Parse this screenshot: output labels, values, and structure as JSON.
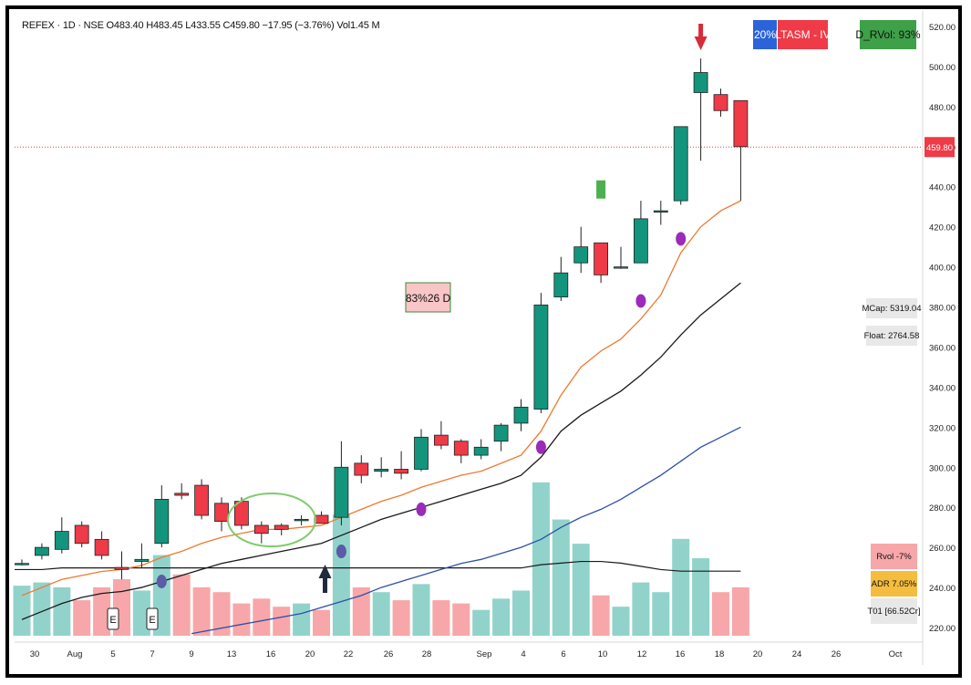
{
  "header": {
    "text": "REFEX · 1D · NSE  O483.40  H483.45  L433.55  C459.80  −17.95 (−3.76%)  Vol1.45 M"
  },
  "badges": {
    "rs": "20%",
    "ltasm": "LTASM - IV",
    "drvol": "D_RVol: 93%"
  },
  "side_info": {
    "mcap": "MCap: 5319.04",
    "float": "Float: 2764.58",
    "rvol": "Rvol -7%",
    "adr": "ADR 7.05%",
    "to": "T01 [66.52Cr]"
  },
  "colors": {
    "up": "#13957d",
    "down": "#ef3a47",
    "volume_up": "#91d3cb",
    "volume_down": "#f7a7a9",
    "ema_fast": "#ee7a2f",
    "ema_mid": "#1a1a1a",
    "ema_slow": "#2c4fa8",
    "rs_badge": "#2b63d9",
    "ltasm_badge": "#ef3a47",
    "drvol_badge": "#3ea048"
  },
  "chart_data": {
    "type": "candlestick",
    "ylim": [
      212,
      525
    ],
    "y_ticks": [
      "520.00",
      "500.00",
      "480.00",
      "460.00",
      "440.00",
      "420.00",
      "400.00",
      "380.00",
      "360.00",
      "340.00",
      "320.00",
      "300.00",
      "280.00",
      "260.00",
      "240.00",
      "220.00"
    ],
    "x_ticks": [
      "30",
      "Aug",
      "5",
      "7",
      "9",
      "13",
      "16",
      "20",
      "22",
      "26",
      "28",
      "Sep",
      "4",
      "6",
      "10",
      "12",
      "16",
      "18",
      "20",
      "24",
      "26",
      "Oct"
    ],
    "last_price": "459.80",
    "annotation": "83%26 D",
    "earnings_markers": [
      "E",
      "E"
    ],
    "candles": [
      {
        "o": 252,
        "h": 254,
        "l": 251,
        "c": 252
      },
      {
        "o": 256,
        "h": 262,
        "l": 254,
        "c": 260
      },
      {
        "o": 259,
        "h": 275,
        "l": 257,
        "c": 268
      },
      {
        "o": 271,
        "h": 273,
        "l": 260,
        "c": 262
      },
      {
        "o": 264,
        "h": 268,
        "l": 254,
        "c": 256
      },
      {
        "o": 250,
        "h": 258,
        "l": 244,
        "c": 249
      },
      {
        "o": 253,
        "h": 262,
        "l": 250,
        "c": 254
      },
      {
        "o": 262,
        "h": 291,
        "l": 260,
        "c": 284
      },
      {
        "o": 287,
        "h": 292,
        "l": 284,
        "c": 286
      },
      {
        "o": 291,
        "h": 294,
        "l": 274,
        "c": 276
      },
      {
        "o": 282,
        "h": 285,
        "l": 268,
        "c": 273
      },
      {
        "o": 283,
        "h": 285,
        "l": 269,
        "c": 271
      },
      {
        "o": 271,
        "h": 273,
        "l": 262,
        "c": 267
      },
      {
        "o": 271,
        "h": 272,
        "l": 266,
        "c": 269
      },
      {
        "o": 274,
        "h": 276,
        "l": 271,
        "c": 274
      },
      {
        "o": 276,
        "h": 278,
        "l": 272,
        "c": 272
      },
      {
        "o": 275,
        "h": 313,
        "l": 271,
        "c": 300
      },
      {
        "o": 302,
        "h": 306,
        "l": 292,
        "c": 296
      },
      {
        "o": 298,
        "h": 305,
        "l": 295,
        "c": 299
      },
      {
        "o": 299,
        "h": 308,
        "l": 294,
        "c": 297
      },
      {
        "o": 299,
        "h": 319,
        "l": 298,
        "c": 315
      },
      {
        "o": 316,
        "h": 323,
        "l": 309,
        "c": 311
      },
      {
        "o": 313,
        "h": 314,
        "l": 302,
        "c": 306
      },
      {
        "o": 306,
        "h": 314,
        "l": 304,
        "c": 310
      },
      {
        "o": 313,
        "h": 322,
        "l": 308,
        "c": 321
      },
      {
        "o": 322,
        "h": 334,
        "l": 318,
        "c": 330
      },
      {
        "o": 329,
        "h": 387,
        "l": 327,
        "c": 381
      },
      {
        "o": 385,
        "h": 405,
        "l": 383,
        "c": 397
      },
      {
        "o": 402,
        "h": 420,
        "l": 397,
        "c": 410
      },
      {
        "o": 412,
        "h": 412,
        "l": 392,
        "c": 396
      },
      {
        "o": 400,
        "h": 410,
        "l": 399,
        "c": 400
      },
      {
        "o": 402,
        "h": 433,
        "l": 402,
        "c": 424
      },
      {
        "o": 428,
        "h": 433,
        "l": 421,
        "c": 428
      },
      {
        "o": 433,
        "h": 468,
        "l": 431,
        "c": 470
      },
      {
        "o": 487,
        "h": 504,
        "l": 453,
        "c": 497
      },
      {
        "o": 486,
        "h": 489,
        "l": 475,
        "c": 478
      },
      {
        "o": 483,
        "h": 483,
        "l": 433,
        "c": 460
      }
    ],
    "volume": [
      0.31,
      0.33,
      0.3,
      0.22,
      0.3,
      0.35,
      0.28,
      0.5,
      0.38,
      0.3,
      0.27,
      0.2,
      0.23,
      0.18,
      0.2,
      0.16,
      0.75,
      0.3,
      0.27,
      0.22,
      0.32,
      0.22,
      0.2,
      0.16,
      0.23,
      0.28,
      0.95,
      0.72,
      0.57,
      0.25,
      0.18,
      0.33,
      0.27,
      0.6,
      0.48,
      0.27,
      0.3
    ],
    "volume_avg": [
      0.41,
      0.41,
      0.42,
      0.42,
      0.42,
      0.42,
      0.42,
      0.42,
      0.42,
      0.42,
      0.42,
      0.42,
      0.42,
      0.42,
      0.42,
      0.42,
      0.42,
      0.42,
      0.42,
      0.42,
      0.42,
      0.42,
      0.42,
      0.42,
      0.42,
      0.42,
      0.44,
      0.45,
      0.46,
      0.46,
      0.45,
      0.43,
      0.41,
      0.4,
      0.4,
      0.4,
      0.4
    ],
    "ema_fast": [
      null,
      null,
      null,
      null,
      null,
      null,
      251,
      255,
      258,
      262,
      265,
      267,
      269,
      269,
      270,
      271,
      275,
      279,
      283,
      286,
      290,
      293,
      296,
      298,
      302,
      306,
      318,
      336,
      350,
      358,
      364,
      374,
      386,
      407,
      420,
      428,
      433
    ],
    "ema_mid": [
      null,
      null,
      null,
      null,
      null,
      null,
      240,
      243,
      246,
      249,
      252,
      254,
      256,
      258,
      260,
      262,
      266,
      270,
      274,
      277,
      280,
      283,
      286,
      289,
      292,
      296,
      305,
      318,
      326,
      332,
      338,
      346,
      355,
      366,
      376,
      384,
      392
    ],
    "ema_slow": [
      null,
      null,
      null,
      null,
      null,
      null,
      null,
      null,
      null,
      null,
      null,
      null,
      null,
      null,
      227,
      230,
      233,
      236,
      240,
      243,
      246,
      249,
      252,
      254,
      257,
      260,
      264,
      270,
      275,
      279,
      284,
      290,
      296,
      303,
      310,
      315,
      320
    ],
    "dots": [
      {
        "i": 7,
        "p": 243
      },
      {
        "i": 16,
        "p": 258
      },
      {
        "i": 20,
        "p": 279
      },
      {
        "i": 26,
        "p": 310
      },
      {
        "i": 31,
        "p": 383
      },
      {
        "i": 33,
        "p": 414
      }
    ],
    "green_marker": {
      "i": 29,
      "p": 435
    },
    "down_arrow": {
      "i": 34
    },
    "up_arrow": {
      "i": 15
    }
  }
}
